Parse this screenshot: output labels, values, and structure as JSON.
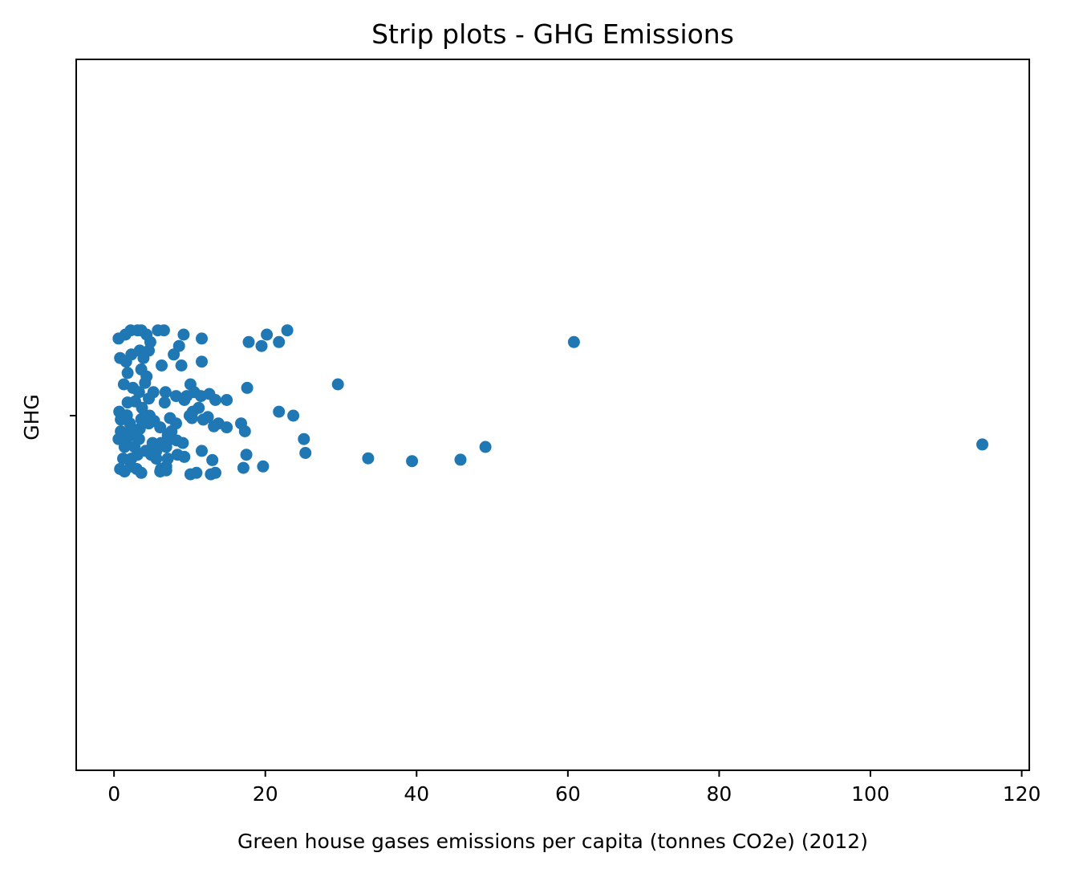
{
  "chart_data": {
    "type": "scatter",
    "subtype": "strip",
    "title": "Strip plots - GHG Emissions",
    "xlabel": "Green house gases emissions per capita (tonnes CO2e) (2012)",
    "ylabel": "GHG",
    "xlim": [
      -5,
      121
    ],
    "x_ticks": [
      0,
      20,
      40,
      60,
      80,
      100,
      120
    ],
    "x_tick_labels": [
      "0",
      "20",
      "40",
      "60",
      "80",
      "100",
      "120"
    ],
    "categories": [
      ""
    ],
    "grid": false,
    "legend": "none",
    "marker_color": "#1f77b4",
    "points": [
      {
        "x": 0.6,
        "jitter": -0.217
      },
      {
        "x": 1.5,
        "jitter": -0.228
      },
      {
        "x": 2.2,
        "jitter": -0.24
      },
      {
        "x": 3.1,
        "jitter": -0.24
      },
      {
        "x": 3.6,
        "jitter": -0.24
      },
      {
        "x": 4.3,
        "jitter": -0.228
      },
      {
        "x": 4.8,
        "jitter": -0.207
      },
      {
        "x": 5.8,
        "jitter": -0.24
      },
      {
        "x": 6.6,
        "jitter": -0.24
      },
      {
        "x": 9.2,
        "jitter": -0.228
      },
      {
        "x": 11.6,
        "jitter": -0.217
      },
      {
        "x": 17.8,
        "jitter": -0.207
      },
      {
        "x": 19.5,
        "jitter": -0.196
      },
      {
        "x": 20.2,
        "jitter": -0.228
      },
      {
        "x": 21.8,
        "jitter": -0.207
      },
      {
        "x": 22.9,
        "jitter": -0.24
      },
      {
        "x": 60.8,
        "jitter": -0.207
      },
      {
        "x": 0.8,
        "jitter": -0.162
      },
      {
        "x": 1.6,
        "jitter": -0.152
      },
      {
        "x": 2.3,
        "jitter": -0.172
      },
      {
        "x": 3.4,
        "jitter": -0.183
      },
      {
        "x": 3.9,
        "jitter": -0.162
      },
      {
        "x": 4.6,
        "jitter": -0.183
      },
      {
        "x": 6.3,
        "jitter": -0.141
      },
      {
        "x": 7.9,
        "jitter": -0.172
      },
      {
        "x": 8.6,
        "jitter": -0.196
      },
      {
        "x": 8.9,
        "jitter": -0.141
      },
      {
        "x": 11.6,
        "jitter": -0.152
      },
      {
        "x": 1.8,
        "jitter": -0.12
      },
      {
        "x": 3.6,
        "jitter": -0.13
      },
      {
        "x": 4.3,
        "jitter": -0.11
      },
      {
        "x": 1.3,
        "jitter": -0.088
      },
      {
        "x": 2.5,
        "jitter": -0.078
      },
      {
        "x": 3.3,
        "jitter": -0.066
      },
      {
        "x": 4.1,
        "jitter": -0.092
      },
      {
        "x": 5.2,
        "jitter": -0.066
      },
      {
        "x": 6.8,
        "jitter": -0.066
      },
      {
        "x": 8.2,
        "jitter": -0.055
      },
      {
        "x": 9.6,
        "jitter": -0.055
      },
      {
        "x": 10.1,
        "jitter": -0.088
      },
      {
        "x": 10.6,
        "jitter": -0.066
      },
      {
        "x": 11.5,
        "jitter": -0.055
      },
      {
        "x": 12.6,
        "jitter": -0.061
      },
      {
        "x": 13.4,
        "jitter": -0.044
      },
      {
        "x": 14.9,
        "jitter": -0.044
      },
      {
        "x": 17.6,
        "jitter": -0.078
      },
      {
        "x": 29.6,
        "jitter": -0.088
      },
      {
        "x": 1.8,
        "jitter": -0.037
      },
      {
        "x": 2.8,
        "jitter": -0.04
      },
      {
        "x": 3.7,
        "jitter": -0.022
      },
      {
        "x": 4.6,
        "jitter": -0.048
      },
      {
        "x": 6.7,
        "jitter": -0.037
      },
      {
        "x": 9.3,
        "jitter": -0.044
      },
      {
        "x": 11.2,
        "jitter": -0.022
      },
      {
        "x": 0.7,
        "jitter": -0.011
      },
      {
        "x": 1.7,
        "jitter": -0.001
      },
      {
        "x": 3.6,
        "jitter": 0.01
      },
      {
        "x": 4.7,
        "jitter": 0.0
      },
      {
        "x": 10.0,
        "jitter": 0.0
      },
      {
        "x": 10.4,
        "jitter": -0.011
      },
      {
        "x": 21.8,
        "jitter": -0.011
      },
      {
        "x": 23.7,
        "jitter": 0.0
      },
      {
        "x": 0.9,
        "jitter": 0.011
      },
      {
        "x": 2.1,
        "jitter": 0.022
      },
      {
        "x": 5.3,
        "jitter": 0.015
      },
      {
        "x": 7.4,
        "jitter": 0.007
      },
      {
        "x": 10.3,
        "jitter": 0.007
      },
      {
        "x": 11.8,
        "jitter": 0.011
      },
      {
        "x": 12.4,
        "jitter": 0.004
      },
      {
        "x": 8.2,
        "jitter": 0.022
      },
      {
        "x": 0.9,
        "jitter": 0.044
      },
      {
        "x": 2.2,
        "jitter": 0.044
      },
      {
        "x": 3.4,
        "jitter": 0.037
      },
      {
        "x": 4.6,
        "jitter": 0.022
      },
      {
        "x": 6.1,
        "jitter": 0.033
      },
      {
        "x": 7.6,
        "jitter": 0.044
      },
      {
        "x": 13.8,
        "jitter": 0.022
      },
      {
        "x": 16.8,
        "jitter": 0.022
      },
      {
        "x": 13.2,
        "jitter": 0.03
      },
      {
        "x": 14.9,
        "jitter": 0.033
      },
      {
        "x": 17.3,
        "jitter": 0.044
      },
      {
        "x": 7.1,
        "jitter": 0.055
      },
      {
        "x": 0.6,
        "jitter": 0.066
      },
      {
        "x": 1.6,
        "jitter": 0.066
      },
      {
        "x": 2.4,
        "jitter": 0.055
      },
      {
        "x": 3.3,
        "jitter": 0.066
      },
      {
        "x": 5.1,
        "jitter": 0.077
      },
      {
        "x": 6.2,
        "jitter": 0.077
      },
      {
        "x": 7.5,
        "jitter": 0.066
      },
      {
        "x": 8.3,
        "jitter": 0.07
      },
      {
        "x": 9.1,
        "jitter": 0.077
      },
      {
        "x": 25.1,
        "jitter": 0.066
      },
      {
        "x": 49.1,
        "jitter": 0.088
      },
      {
        "x": 114.8,
        "jitter": 0.081
      },
      {
        "x": 1.4,
        "jitter": 0.088
      },
      {
        "x": 2.7,
        "jitter": 0.088
      },
      {
        "x": 4.2,
        "jitter": 0.099
      },
      {
        "x": 5.6,
        "jitter": 0.099
      },
      {
        "x": 6.9,
        "jitter": 0.088
      },
      {
        "x": 11.6,
        "jitter": 0.099
      },
      {
        "x": 25.3,
        "jitter": 0.105
      },
      {
        "x": 1.2,
        "jitter": 0.121
      },
      {
        "x": 2.3,
        "jitter": 0.121
      },
      {
        "x": 3.1,
        "jitter": 0.11
      },
      {
        "x": 4.9,
        "jitter": 0.11
      },
      {
        "x": 5.6,
        "jitter": 0.121
      },
      {
        "x": 7.1,
        "jitter": 0.121
      },
      {
        "x": 8.4,
        "jitter": 0.11
      },
      {
        "x": 9.3,
        "jitter": 0.116
      },
      {
        "x": 13.0,
        "jitter": 0.125
      },
      {
        "x": 17.5,
        "jitter": 0.11
      },
      {
        "x": 33.6,
        "jitter": 0.12
      },
      {
        "x": 39.4,
        "jitter": 0.128
      },
      {
        "x": 45.8,
        "jitter": 0.124
      },
      {
        "x": 0.8,
        "jitter": 0.15
      },
      {
        "x": 2.2,
        "jitter": 0.143
      },
      {
        "x": 3.0,
        "jitter": 0.15
      },
      {
        "x": 6.2,
        "jitter": 0.15
      },
      {
        "x": 6.9,
        "jitter": 0.143
      },
      {
        "x": 17.1,
        "jitter": 0.147
      },
      {
        "x": 19.7,
        "jitter": 0.143
      },
      {
        "x": 1.4,
        "jitter": 0.157
      },
      {
        "x": 3.6,
        "jitter": 0.161
      },
      {
        "x": 6.1,
        "jitter": 0.157
      },
      {
        "x": 6.9,
        "jitter": 0.154
      },
      {
        "x": 10.1,
        "jitter": 0.165
      },
      {
        "x": 10.9,
        "jitter": 0.161
      },
      {
        "x": 12.8,
        "jitter": 0.165
      },
      {
        "x": 13.4,
        "jitter": 0.161
      }
    ]
  }
}
